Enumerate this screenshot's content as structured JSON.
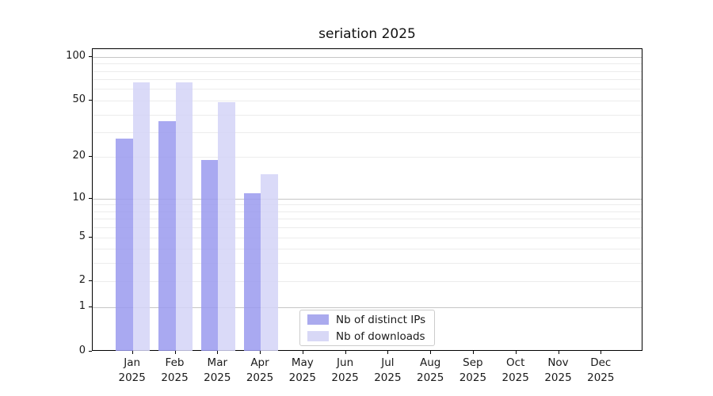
{
  "chart_data": {
    "type": "bar",
    "title": "seriation 2025",
    "x_labels": [
      [
        "Jan",
        "2025"
      ],
      [
        "Feb",
        "2025"
      ],
      [
        "Mar",
        "2025"
      ],
      [
        "Apr",
        "2025"
      ],
      [
        "May",
        "2025"
      ],
      [
        "Jun",
        "2025"
      ],
      [
        "Jul",
        "2025"
      ],
      [
        "Aug",
        "2025"
      ],
      [
        "Sep",
        "2025"
      ],
      [
        "Oct",
        "2025"
      ],
      [
        "Nov",
        "2025"
      ],
      [
        "Dec",
        "2025"
      ]
    ],
    "series": [
      {
        "name": "Nb of distinct IPs",
        "values": [
          27,
          36,
          19,
          11,
          0,
          0,
          0,
          0,
          0,
          0,
          0,
          0
        ]
      },
      {
        "name": "Nb of downloads",
        "values": [
          67,
          67,
          49,
          15,
          0,
          0,
          0,
          0,
          0,
          0,
          0,
          0
        ]
      }
    ],
    "yscale": "log1p",
    "ylim": [
      0,
      113
    ],
    "yticks": [
      100,
      50,
      20,
      10,
      5,
      2,
      1,
      0
    ],
    "ytick_labels": [
      "100",
      "50",
      "20",
      "10",
      "5",
      "2",
      "1",
      "0"
    ],
    "gridlines_minor": [
      2,
      3,
      4,
      5,
      6,
      7,
      8,
      9,
      20,
      30,
      40,
      50,
      60,
      70,
      80,
      90
    ],
    "gridlines_decade": [
      1,
      10,
      100
    ],
    "legend_position": "lower center-right"
  },
  "colors": {
    "ips_bar": "rgba(154,154,238,0.85)",
    "downloads_bar": "rgba(212,212,247,0.85)",
    "ips_swatch": "#aaaaee",
    "downloads_swatch": "#d8d8f6",
    "grid_minor": "#ececec",
    "grid_decade": "#c6c6c6",
    "axis": "#000000",
    "text": "#1a1a1a"
  }
}
